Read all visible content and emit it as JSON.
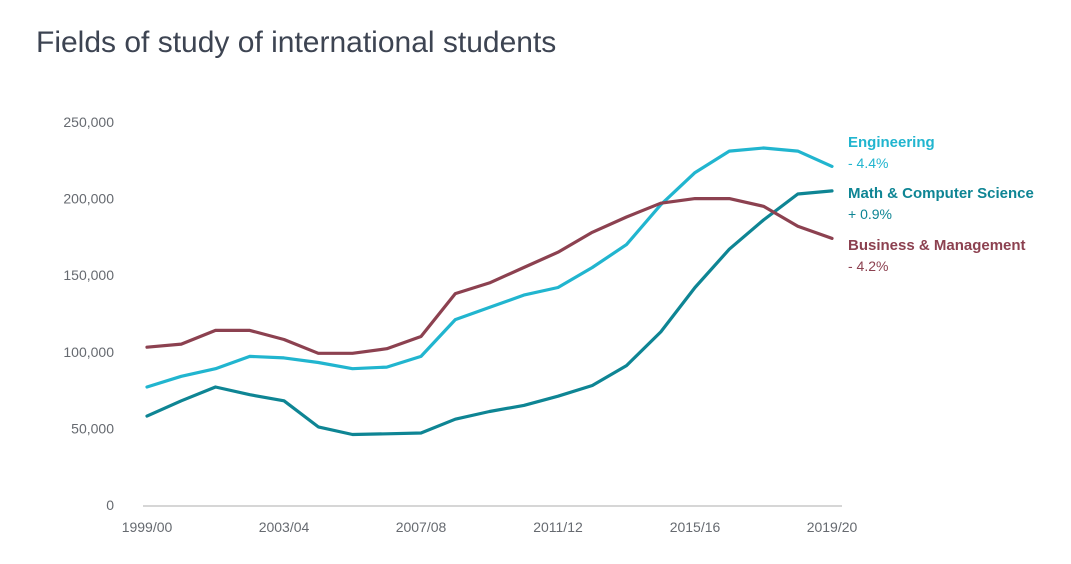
{
  "title": "Fields of study of international students",
  "colors": {
    "engineering": "#21b5cf",
    "math_cs": "#0e8594",
    "business": "#8c4150",
    "axis": "#c8c8c8",
    "tick_text": "#666a70",
    "title": "#3d4452"
  },
  "chart_data": {
    "type": "line",
    "title": "Fields of study of international students",
    "xlabel": "",
    "ylabel": "",
    "ylim": [
      0,
      250000
    ],
    "yticks": [
      0,
      50000,
      100000,
      150000,
      200000,
      250000
    ],
    "ytick_labels": [
      "0",
      "50,000",
      "100,000",
      "150,000",
      "200,000",
      "250,000"
    ],
    "x": [
      "1999/00",
      "2000/01",
      "2001/02",
      "2002/03",
      "2003/04",
      "2004/05",
      "2005/06",
      "2006/07",
      "2007/08",
      "2008/09",
      "2009/10",
      "2010/11",
      "2011/12",
      "2012/13",
      "2013/14",
      "2014/15",
      "2015/16",
      "2016/17",
      "2017/18",
      "2018/19",
      "2019/20"
    ],
    "xtick_labels": [
      "1999/00",
      "2003/04",
      "2007/08",
      "2011/12",
      "2015/16",
      "2019/20"
    ],
    "grid": false,
    "legend": "right (end of lines)",
    "series": [
      {
        "key": "engineering",
        "name": "Engineering",
        "change": "- 4.4%",
        "values": [
          77000,
          84000,
          89000,
          97000,
          96000,
          93000,
          89000,
          90000,
          97000,
          121000,
          129000,
          137000,
          142000,
          155000,
          170000,
          196000,
          217000,
          231000,
          233000,
          231000,
          221000
        ]
      },
      {
        "key": "math_cs",
        "name": "Math & Computer Science",
        "change": "+ 0.9%",
        "values": [
          58000,
          68000,
          77000,
          72000,
          68000,
          51000,
          46000,
          46500,
          47000,
          56000,
          61000,
          65000,
          71000,
          78000,
          91000,
          113000,
          142000,
          167000,
          186000,
          203000,
          205000
        ]
      },
      {
        "key": "business",
        "name": "Business & Management",
        "change": "- 4.2%",
        "values": [
          103000,
          105000,
          114000,
          114000,
          108000,
          99000,
          99000,
          102000,
          110000,
          138000,
          145000,
          155000,
          165000,
          178000,
          188000,
          197000,
          200000,
          200000,
          195000,
          182000,
          174000
        ]
      }
    ]
  }
}
